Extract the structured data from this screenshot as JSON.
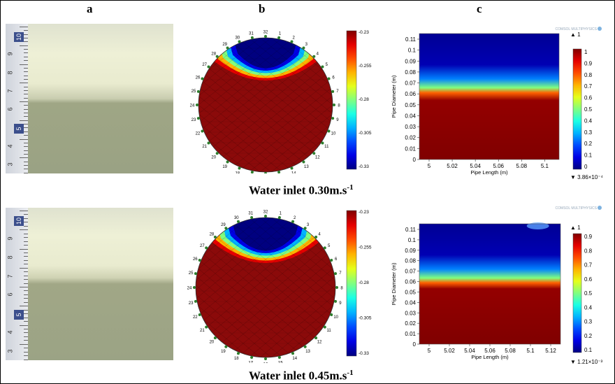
{
  "columns": {
    "a": "a",
    "b": "b",
    "c": "c"
  },
  "rows": [
    {
      "caption": "Water inlet 0.30m.s",
      "caption_sup": "-1",
      "ruler_numbers": [
        "10",
        "9",
        "8",
        "7",
        "6",
        "5",
        "4",
        "3"
      ],
      "ruler_boxes": [
        "10",
        "5"
      ],
      "tomogram": {
        "electrodes": [
          "32",
          "1",
          "2",
          "3",
          "4",
          "5",
          "6",
          "7",
          "8",
          "9",
          "10",
          "11",
          "12",
          "13",
          "14",
          "15",
          "16",
          "17",
          "18",
          "19",
          "20",
          "21",
          "22",
          "23",
          "24",
          "25",
          "26",
          "27",
          "28",
          "29",
          "30",
          "31"
        ],
        "colorbar_ticks": [
          "-0.23",
          "-0.255",
          "-0.28",
          "-0.305",
          "-0.33"
        ]
      },
      "sim": {
        "y_ticks": [
          "0",
          "0.01",
          "0.02",
          "0.03",
          "0.04",
          "0.05",
          "0.06",
          "0.07",
          "0.08",
          "0.09",
          "0.1",
          "0.11"
        ],
        "x_ticks": [
          "5",
          "5.02",
          "5.04",
          "5.06",
          "5.08",
          "5.1"
        ],
        "ylabel": "Pipe Diameter (m)",
        "xlabel": "Pipe Length (m)",
        "colorbar_ticks": [
          "0",
          "0.1",
          "0.2",
          "0.3",
          "0.4",
          "0.5",
          "0.6",
          "0.7",
          "0.8",
          "0.9",
          "1"
        ],
        "max_label": "▲ 1",
        "min_label": "▼ 3.86×10⁻⁴",
        "watermark": "COMSOL MULTIPHYSICS"
      }
    },
    {
      "caption": "Water inlet 0.45m.s",
      "caption_sup": "-1",
      "ruler_numbers": [
        "10",
        "9",
        "8",
        "7",
        "6",
        "5",
        "4",
        "3"
      ],
      "ruler_boxes": [
        "10",
        "5"
      ],
      "tomogram": {
        "electrodes": [
          "32",
          "1",
          "2",
          "3",
          "4",
          "5",
          "6",
          "7",
          "8",
          "9",
          "10",
          "11",
          "12",
          "13",
          "14",
          "15",
          "16",
          "17",
          "18",
          "19",
          "20",
          "21",
          "22",
          "23",
          "24",
          "25",
          "26",
          "27",
          "28",
          "29",
          "30",
          "31"
        ],
        "colorbar_ticks": [
          "-0.23",
          "-0.255",
          "-0.28",
          "-0.305",
          "-0.33"
        ]
      },
      "sim": {
        "y_ticks": [
          "0",
          "0.01",
          "0.02",
          "0.03",
          "0.04",
          "0.05",
          "0.06",
          "0.07",
          "0.08",
          "0.09",
          "0.1",
          "0.11"
        ],
        "x_ticks": [
          "5",
          "5.02",
          "5.04",
          "5.06",
          "5.08",
          "5.1",
          "5.12"
        ],
        "ylabel": "Pipe Diameter (m)",
        "xlabel": "Pipe Length (m)",
        "colorbar_ticks": [
          "0.1",
          "0.2",
          "0.3",
          "0.4",
          "0.5",
          "0.6",
          "0.7",
          "0.8",
          "0.9"
        ],
        "max_label": "▲ 1",
        "min_label": "▼ 1.21×10⁻³",
        "watermark": "COMSOL MULTIPHYSICS"
      }
    }
  ],
  "colors": {
    "dark_red": "#8b0a0a",
    "dark_blue": "#00008b",
    "cream": "#e9ecd3",
    "olive": "#9aa384"
  }
}
